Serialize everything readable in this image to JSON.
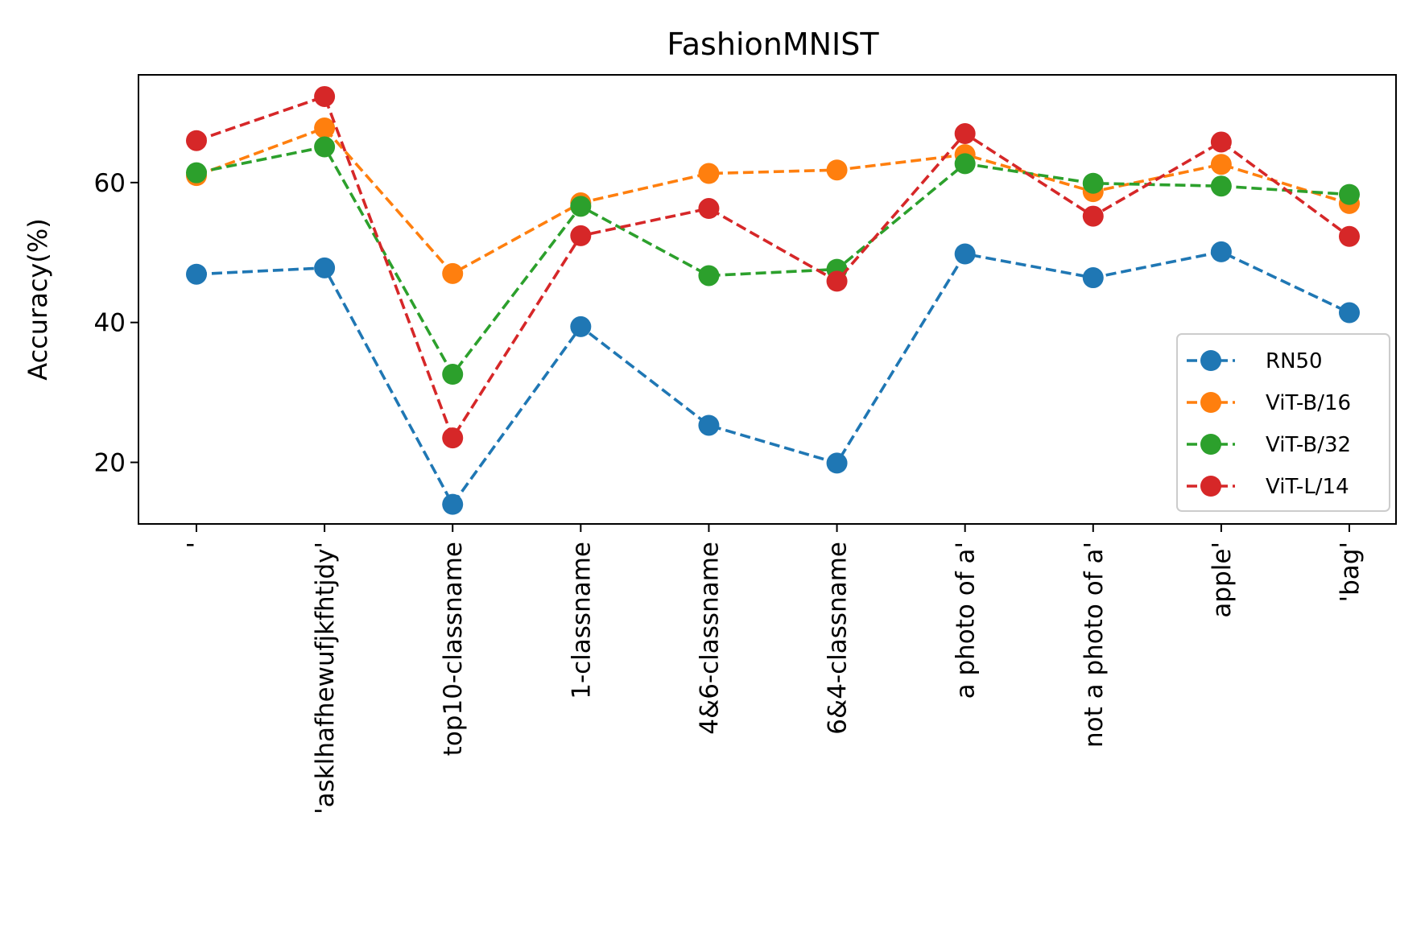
{
  "chart_data": {
    "type": "line",
    "title": "FashionMNIST",
    "xlabel": "",
    "ylabel": "Accuracy(%)",
    "categories": [
      "'",
      "'asklhafhewufjkfhtjdy'",
      "top10-classname",
      "1-classname",
      "4&6-classname",
      "6&4-classname",
      "a photo of a'",
      "not a photo of a'",
      "apple'",
      "'bag'"
    ],
    "ylim": [
      11.2,
      75.4
    ],
    "yticks": [
      20,
      40,
      60
    ],
    "grid": false,
    "legend_position": "lower-right",
    "series": [
      {
        "name": "RN50",
        "color": "#1f77b4",
        "values": [
          46.9,
          47.8,
          14.0,
          39.4,
          25.3,
          19.9,
          49.8,
          46.4,
          50.1,
          41.4
        ]
      },
      {
        "name": "ViT-B/16",
        "color": "#ff7f0e",
        "values": [
          61.0,
          67.8,
          47.0,
          57.1,
          61.3,
          61.8,
          64.0,
          58.7,
          62.6,
          57.0
        ]
      },
      {
        "name": "ViT-B/32",
        "color": "#2ca02c",
        "values": [
          61.4,
          65.1,
          32.6,
          56.6,
          46.7,
          47.6,
          62.7,
          59.9,
          59.5,
          58.3
        ]
      },
      {
        "name": "ViT-L/14",
        "color": "#d62728",
        "values": [
          66.0,
          72.3,
          23.5,
          52.4,
          56.3,
          45.9,
          67.0,
          55.2,
          65.8,
          52.3
        ]
      }
    ]
  }
}
